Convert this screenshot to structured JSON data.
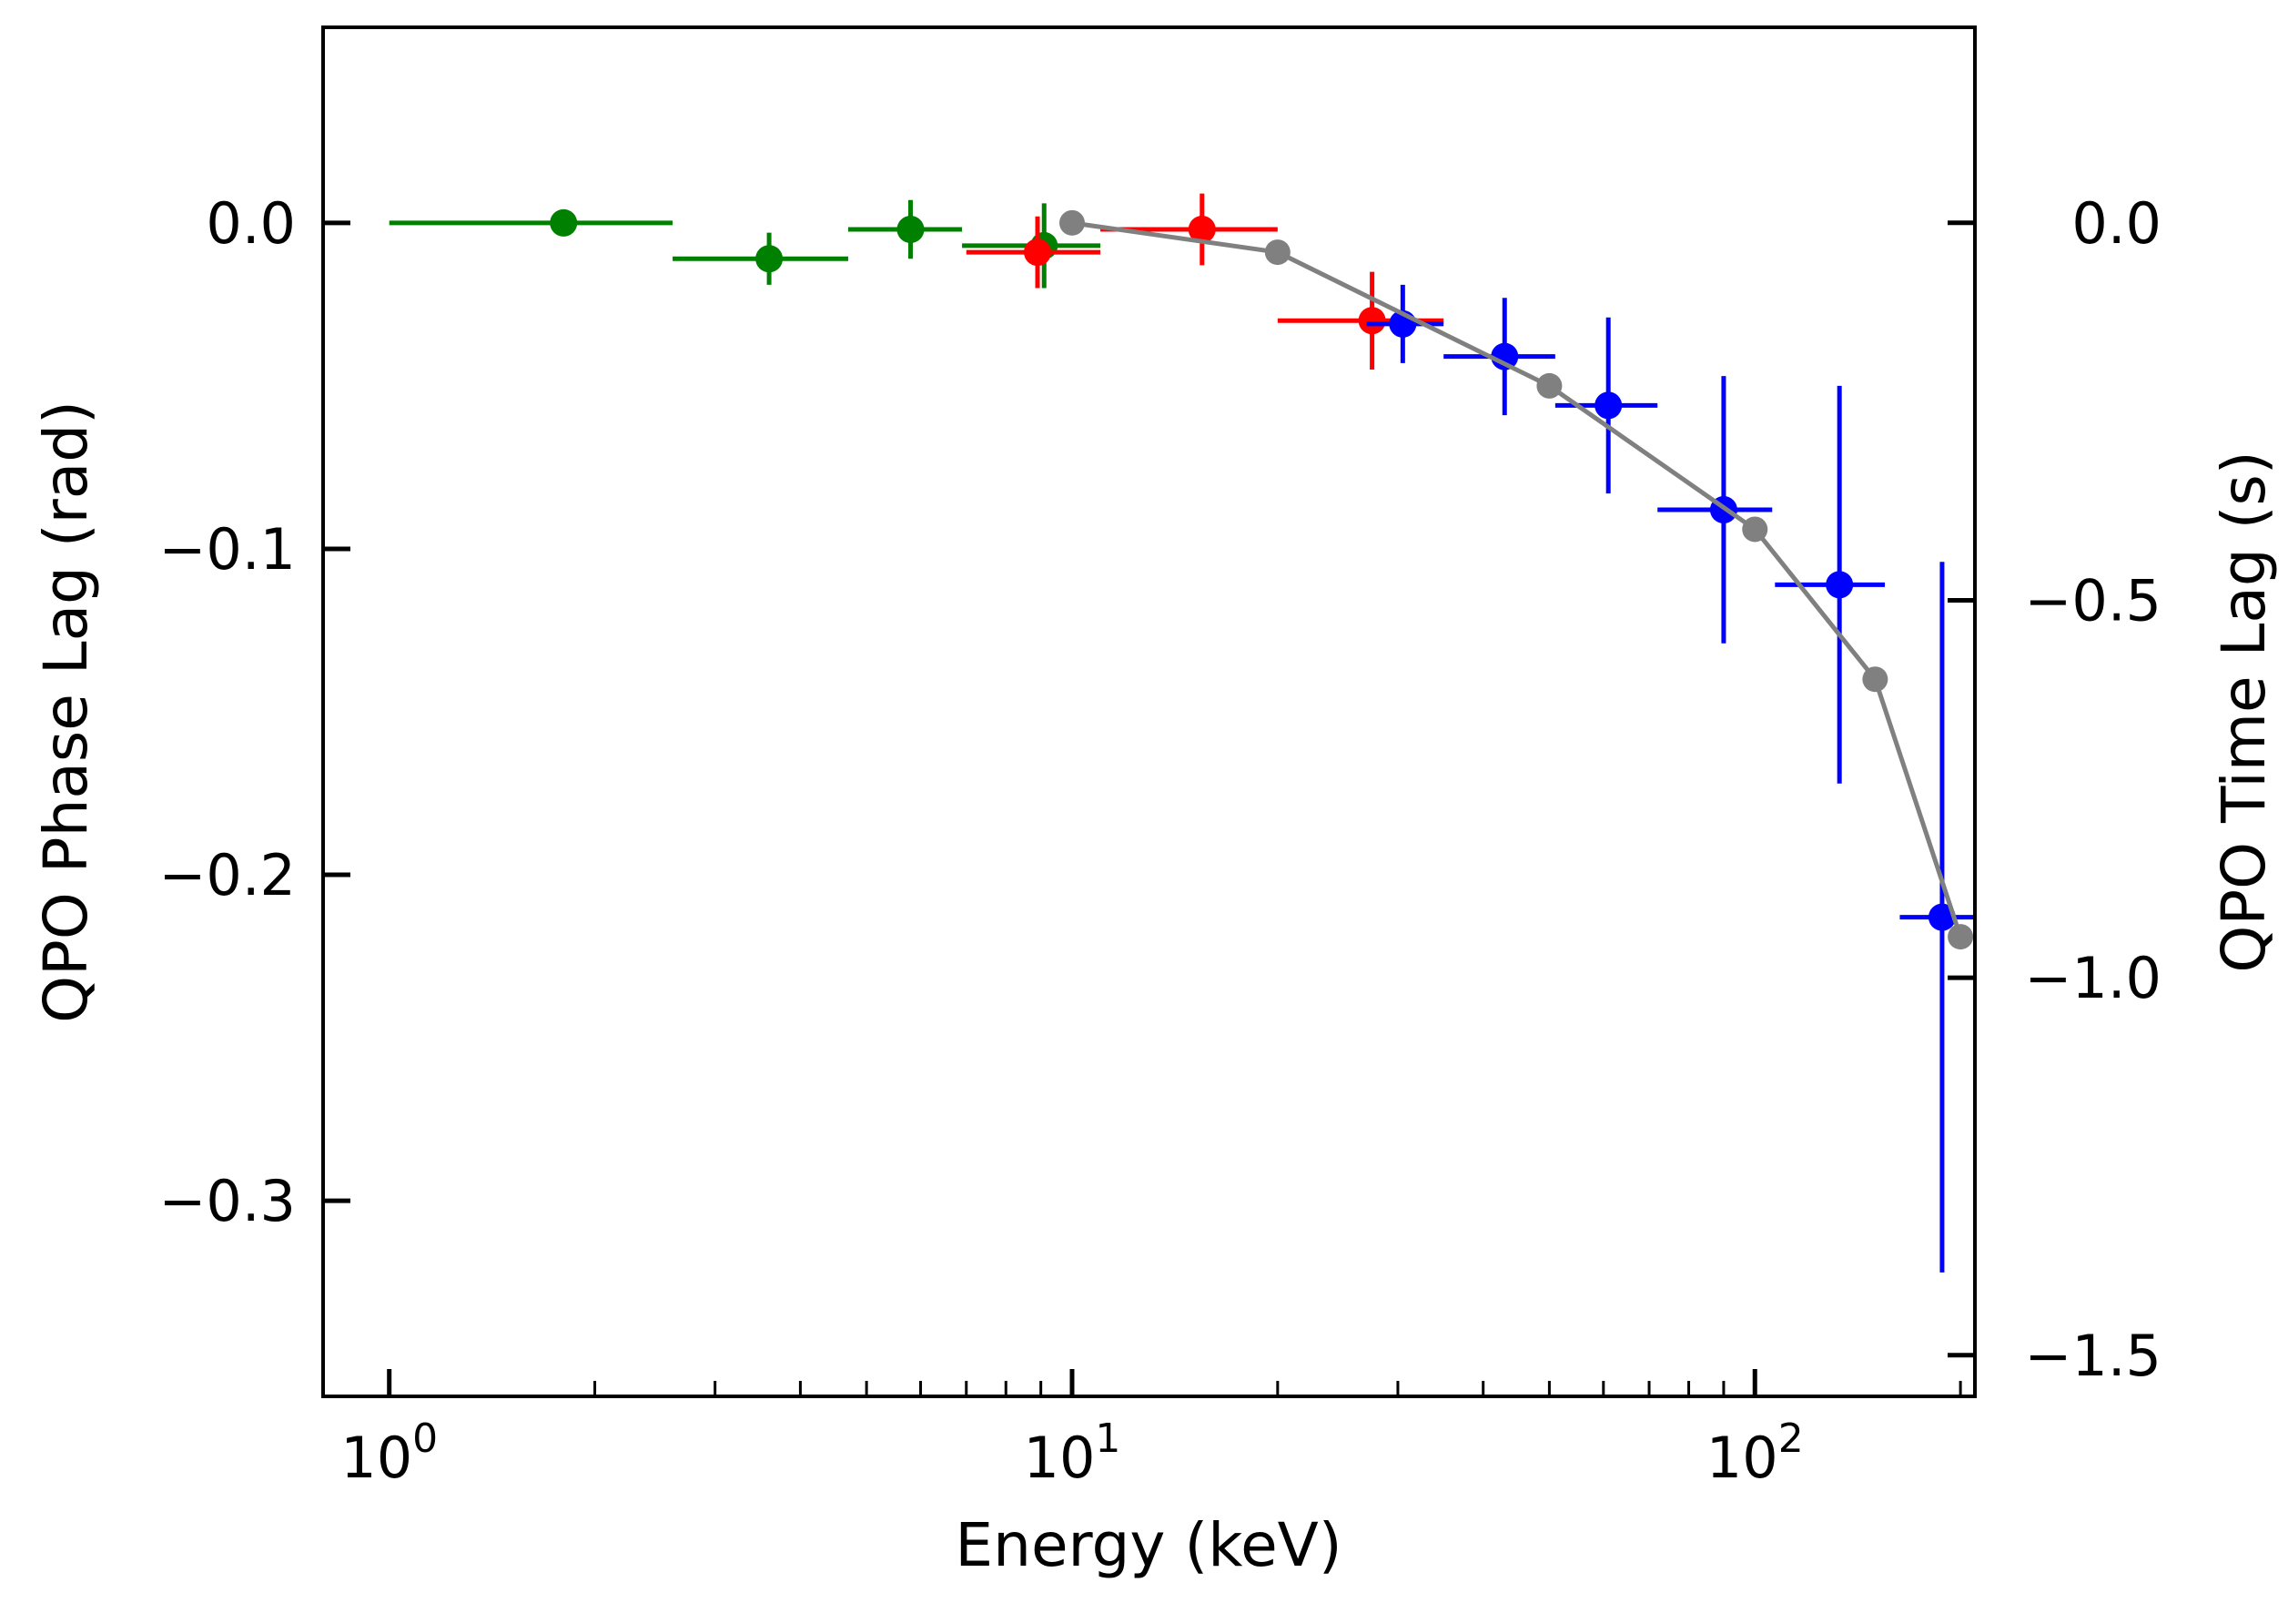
{
  "chart_data": {
    "type": "scatter",
    "title": "",
    "xlabel": "Energy (keV)",
    "ylabel_left": "QPO Phase Lag (rad)",
    "ylabel_right": "QPO Time Lag (s)",
    "x_scale": "log",
    "xlim": [
      0.8,
      210
    ],
    "ylim_left": [
      -0.36,
      0.06
    ],
    "ylim_right": [
      -1.5545,
      0.259
    ],
    "grid": false,
    "legend": "none",
    "x_ticks": [
      {
        "value": 1,
        "base": "10",
        "exp": "0"
      },
      {
        "value": 10,
        "base": "10",
        "exp": "1"
      },
      {
        "value": 100,
        "base": "10",
        "exp": "2"
      }
    ],
    "y_ticks_left": [
      {
        "value": 0.0,
        "label": "0.0"
      },
      {
        "value": -0.1,
        "label": "−0.1"
      },
      {
        "value": -0.2,
        "label": "−0.2"
      },
      {
        "value": -0.3,
        "label": "−0.3"
      }
    ],
    "y_ticks_right": [
      {
        "value": 0.0,
        "label": "0.0"
      },
      {
        "value": -0.5,
        "label": "−0.5"
      },
      {
        "value": -1.0,
        "label": "−1.0"
      },
      {
        "value": -1.5,
        "label": "−1.5"
      }
    ],
    "series": [
      {
        "name": "green",
        "color": "#008000",
        "points": [
          {
            "x": 1.8,
            "xlo": 1.0,
            "xhi": 2.6,
            "y": 0.0,
            "yerr": 0.0
          },
          {
            "x": 3.6,
            "xlo": 2.6,
            "xhi": 4.7,
            "y": -0.011,
            "yerr": 0.008
          },
          {
            "x": 5.8,
            "xlo": 4.7,
            "xhi": 6.9,
            "y": -0.002,
            "yerr": 0.009
          },
          {
            "x": 9.1,
            "xlo": 6.9,
            "xhi": 11.0,
            "y": -0.007,
            "yerr": 0.013
          }
        ]
      },
      {
        "name": "red",
        "color": "#ff0000",
        "points": [
          {
            "x": 8.9,
            "xlo": 7.0,
            "xhi": 11.0,
            "y": -0.009,
            "yerr": 0.011
          },
          {
            "x": 15.5,
            "xlo": 11.0,
            "xhi": 20.0,
            "y": -0.002,
            "yerr": 0.011
          },
          {
            "x": 27.5,
            "xlo": 20.0,
            "xhi": 35.0,
            "y": -0.03,
            "yerr": 0.015
          }
        ]
      },
      {
        "name": "blue",
        "color": "#0000ff",
        "points": [
          {
            "x": 30.5,
            "xlo": 27.0,
            "xhi": 35.0,
            "y": -0.031,
            "yerr": 0.012
          },
          {
            "x": 43.0,
            "xlo": 35.0,
            "xhi": 51.0,
            "y": -0.041,
            "yerr": 0.018
          },
          {
            "x": 61.0,
            "xlo": 51.0,
            "xhi": 72.0,
            "y": -0.056,
            "yerr": 0.027
          },
          {
            "x": 90.0,
            "xlo": 72.0,
            "xhi": 106.0,
            "y": -0.088,
            "yerr": 0.041
          },
          {
            "x": 133.0,
            "xlo": 107.0,
            "xhi": 155.0,
            "y": -0.111,
            "yerr": 0.061
          },
          {
            "x": 188.0,
            "xlo": 163.0,
            "xhi": 212.0,
            "y": -0.213,
            "yerr": 0.109
          }
        ]
      }
    ],
    "model": {
      "name": "model",
      "color": "#808080",
      "points": [
        {
          "x": 10.0,
          "y": 0.0
        },
        {
          "x": 20.0,
          "y": -0.009
        },
        {
          "x": 50.0,
          "y": -0.05
        },
        {
          "x": 100.0,
          "y": -0.094
        },
        {
          "x": 150.0,
          "y": -0.14
        },
        {
          "x": 200.0,
          "y": -0.219
        }
      ]
    }
  }
}
